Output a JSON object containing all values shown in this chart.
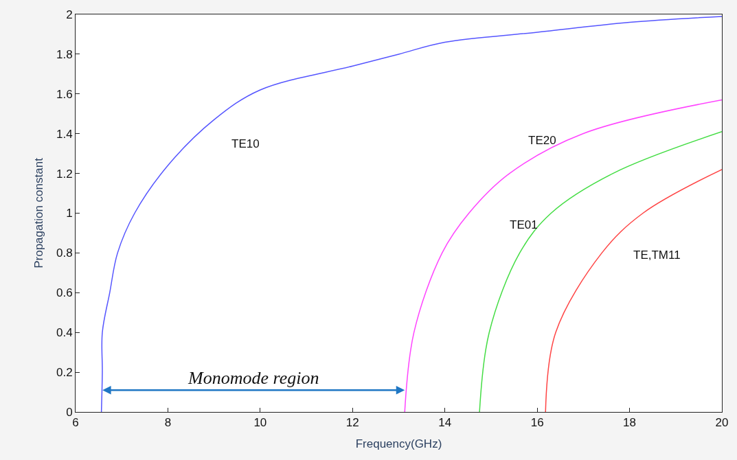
{
  "chart_data": {
    "type": "line",
    "xlabel": "Frequency(GHz)",
    "ylabel": "Propagation constant",
    "xlim": [
      6,
      20
    ],
    "xticks": [
      6,
      8,
      10,
      12,
      14,
      16,
      18,
      20
    ],
    "ylim": [
      0,
      2
    ],
    "yticks": [
      0,
      0.2,
      0.4,
      0.6,
      0.8,
      1,
      1.2,
      1.4,
      1.6,
      1.8,
      2
    ],
    "marker": "none",
    "line_style": "solid",
    "series": [
      {
        "color": "#5555ff",
        "x": [
          6.56,
          6.58,
          6.58,
          6.74,
          6.91,
          7.28,
          8,
          9,
          10,
          12,
          13,
          14,
          16,
          18,
          20
        ],
        "values": [
          0,
          0.2,
          0.4,
          0.6,
          0.8,
          1.0,
          1.24,
          1.47,
          1.62,
          1.74,
          1.8,
          1.86,
          1.91,
          1.96,
          1.99
        ]
      },
      {
        "color": "#ff44ff",
        "x": [
          13.13,
          13.33,
          13.94,
          14.52,
          15.4,
          16.99,
          20
        ],
        "values": [
          0,
          0.4,
          0.8,
          1.0,
          1.2,
          1.4,
          1.57
        ]
      },
      {
        "color": "#44dd44",
        "x": [
          14.75,
          14.96,
          15.62,
          16.3,
          17.64,
          20
        ],
        "values": [
          0,
          0.4,
          0.8,
          1.0,
          1.2,
          1.41
        ]
      },
      {
        "color": "#ff4444",
        "x": [
          16.18,
          16.4,
          17.4,
          18.29,
          20
        ],
        "values": [
          0,
          0.4,
          0.8,
          1.0,
          1.22
        ]
      }
    ],
    "annotations": [
      {
        "text": "TE10",
        "x": 9,
        "y": 1.47
      },
      {
        "text": "TE20",
        "x": 15.4,
        "y": 1.2
      },
      {
        "text": "TE01",
        "x": 16.3,
        "y": 1.0
      },
      {
        "text": "TE,TM11",
        "x": 17.4,
        "y": 0.8
      },
      "Monomode region"
    ]
  }
}
